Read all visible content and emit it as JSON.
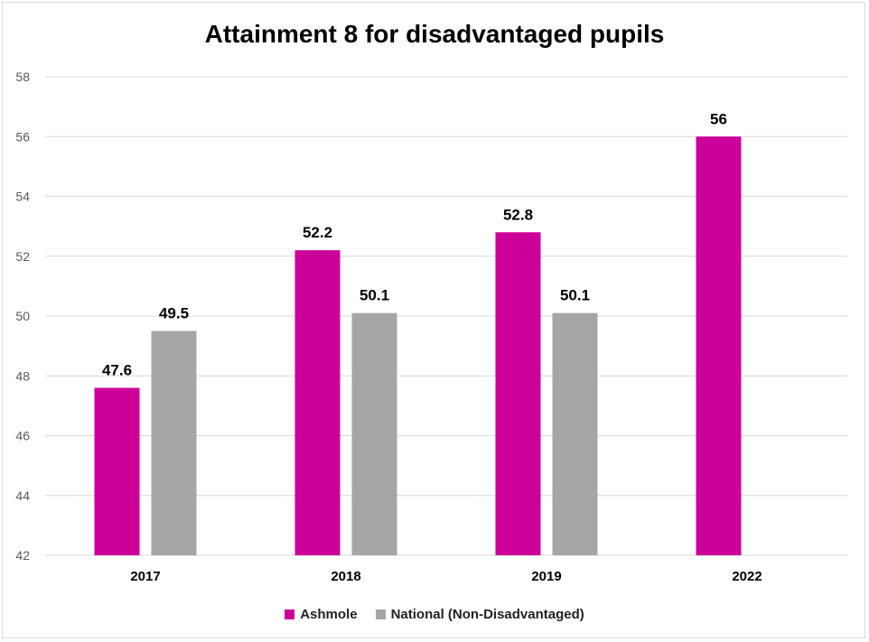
{
  "chart_data": {
    "type": "bar",
    "title": "Attainment 8 for disadvantaged pupils",
    "xlabel": "",
    "ylabel": "",
    "categories": [
      "2017",
      "2018",
      "2019",
      "2022"
    ],
    "series": [
      {
        "name": "Ashmole",
        "color": "#cc0099",
        "values": [
          47.6,
          52.2,
          52.8,
          56
        ]
      },
      {
        "name": "National (Non-Disadvantaged)",
        "color": "#a6a6a6",
        "values": [
          49.5,
          50.1,
          50.1,
          null
        ]
      }
    ],
    "ylim": [
      42,
      58
    ],
    "yticks": [
      42,
      44,
      46,
      48,
      50,
      52,
      54,
      56,
      58
    ],
    "data_labels": [
      [
        "47.6",
        "52.2",
        "52.8",
        "56"
      ],
      [
        "49.5",
        "50.1",
        "50.1",
        ""
      ]
    ],
    "grid": true,
    "legend_position": "bottom"
  }
}
